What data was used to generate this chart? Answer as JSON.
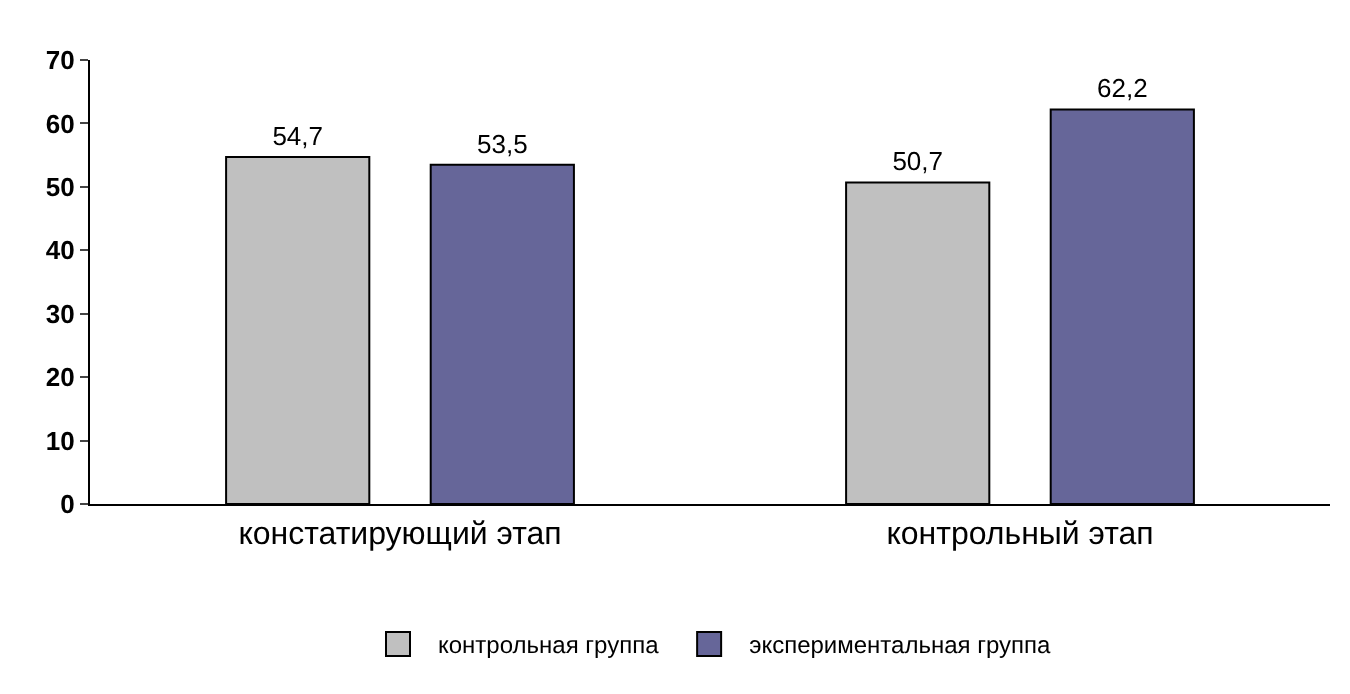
{
  "chart_data": {
    "type": "bar",
    "categories": [
      "констатирующий этап",
      "контрольный этап"
    ],
    "series": [
      {
        "name": "контрольная группа",
        "color": "#c0c0c0",
        "values": [
          54.7,
          50.7
        ],
        "value_labels": [
          "54,7",
          "50,7"
        ]
      },
      {
        "name": "экспериментальная группа",
        "color": "#666699",
        "values": [
          53.5,
          62.2
        ],
        "value_labels": [
          "53,5",
          "62,2"
        ]
      }
    ],
    "ylim": [
      0,
      70
    ],
    "yticks": [
      0,
      10,
      20,
      30,
      40,
      50,
      60,
      70
    ],
    "grid": false,
    "legend": "bottom"
  }
}
